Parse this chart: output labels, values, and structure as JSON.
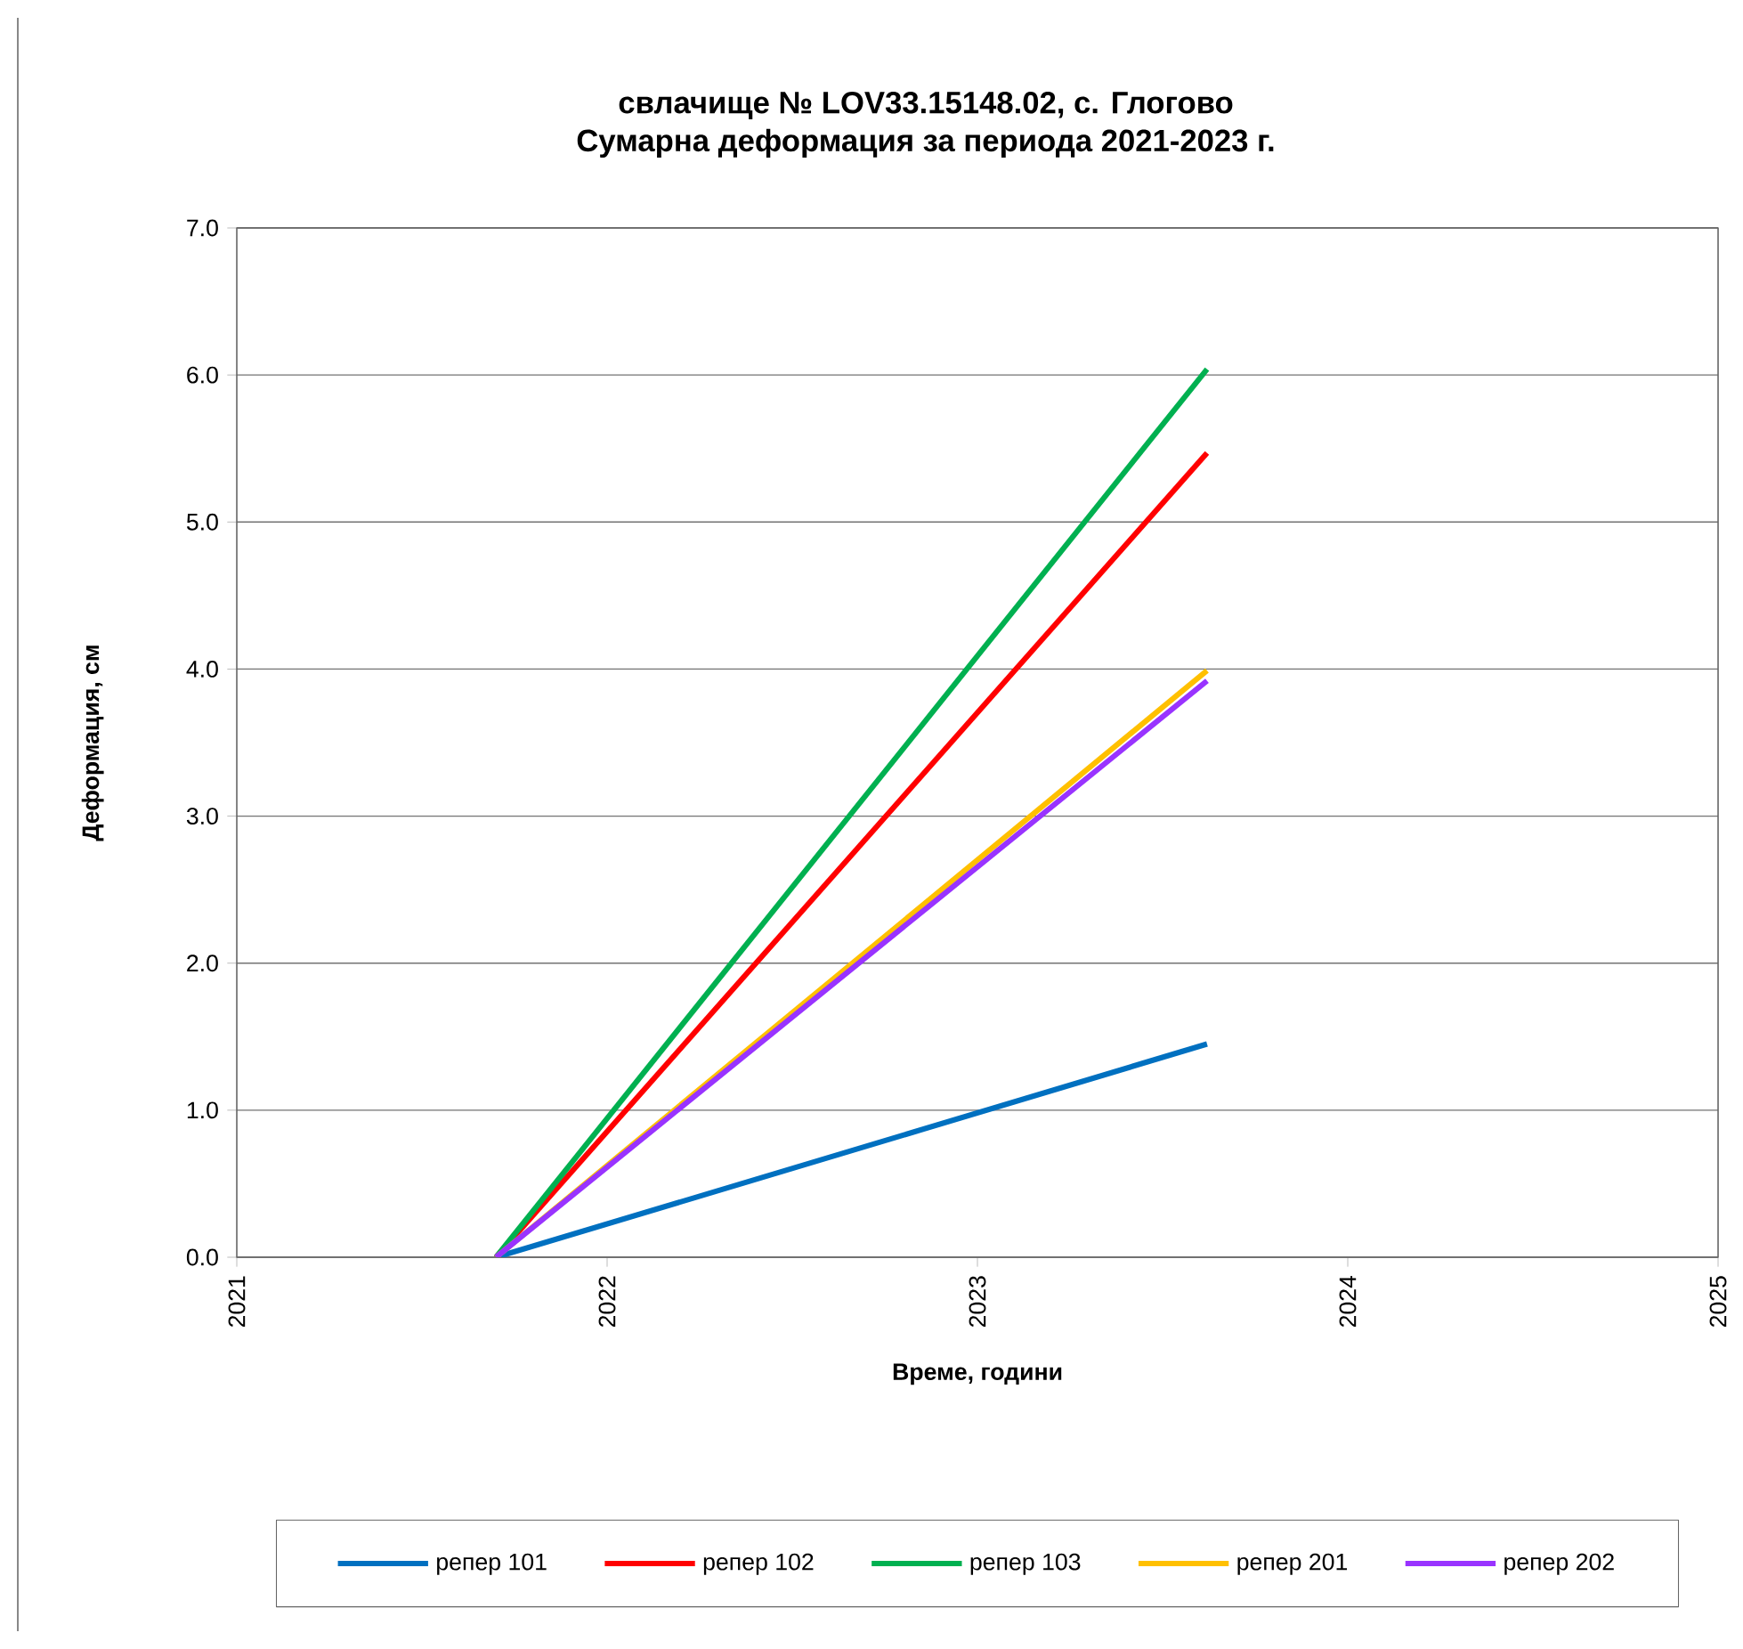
{
  "chart_data": {
    "type": "line",
    "title": "свлачище № LOV33.15148.02, с. Глогово",
    "subtitle": "Сумарна деформация за периода 2021-2023 г.",
    "xlabel": "Време, години",
    "ylabel": "Деформация, см",
    "x": [
      2021.7,
      2023.62
    ],
    "series": [
      {
        "name": "репер 101",
        "color": "#0070c0",
        "values": [
          0,
          1.45
        ]
      },
      {
        "name": "репер 102",
        "color": "#ff0000",
        "values": [
          0,
          5.47
        ]
      },
      {
        "name": "репер 103",
        "color": "#00b050",
        "values": [
          0,
          6.04
        ]
      },
      {
        "name": "репер 201",
        "color": "#ffc000",
        "values": [
          0,
          3.99
        ]
      },
      {
        "name": "репер 202",
        "color": "#9933ff",
        "values": [
          0,
          3.92
        ]
      }
    ],
    "xlim": [
      2021,
      2025
    ],
    "xticks": [
      2021,
      2022,
      2023,
      2024,
      2025
    ],
    "ylim": [
      0,
      7
    ],
    "yticks": [
      {
        "value": 0,
        "label": "0.0"
      },
      {
        "value": 1,
        "label": "1.0"
      },
      {
        "value": 2,
        "label": "2.0"
      },
      {
        "value": 3,
        "label": "3.0"
      },
      {
        "value": 4,
        "label": "4.0"
      },
      {
        "value": 5,
        "label": "5.0"
      },
      {
        "value": 6,
        "label": "6.0"
      },
      {
        "value": 7,
        "label": "7.0"
      }
    ],
    "grid": "y",
    "legend": "bottom",
    "marker": "none",
    "line_style": "solid"
  }
}
